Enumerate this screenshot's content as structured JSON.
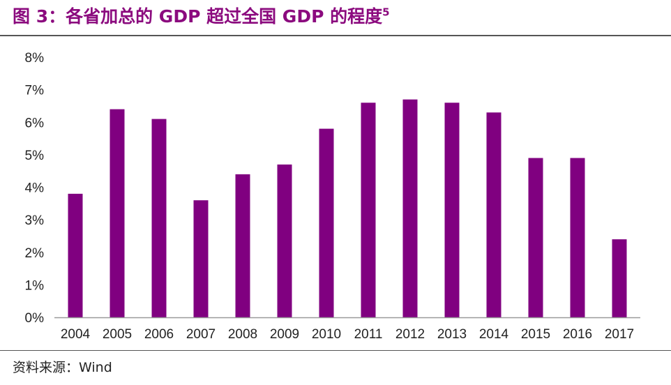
{
  "figure": {
    "title_prefix": "图 3：各省加总的 GDP 超过全国 GDP 的程度",
    "title_sup": "5",
    "source": "资料来源：Wind"
  },
  "colors": {
    "bar": "#800080",
    "title": "#8B0A7E",
    "axis": "#999999"
  },
  "chart_data": {
    "type": "bar",
    "categories": [
      "2004",
      "2005",
      "2006",
      "2007",
      "2008",
      "2009",
      "2010",
      "2011",
      "2012",
      "2013",
      "2014",
      "2015",
      "2016",
      "2017"
    ],
    "values": [
      3.8,
      6.4,
      6.1,
      3.6,
      4.4,
      4.7,
      5.8,
      6.6,
      6.7,
      6.6,
      6.3,
      4.9,
      4.9,
      2.4
    ],
    "y_ticks": [
      "0%",
      "1%",
      "2%",
      "3%",
      "4%",
      "5%",
      "6%",
      "7%",
      "8%"
    ],
    "ylim": [
      0,
      8
    ],
    "y_unit": "%",
    "grid": false,
    "legend": "none",
    "title": "",
    "xlabel": "",
    "ylabel": ""
  }
}
